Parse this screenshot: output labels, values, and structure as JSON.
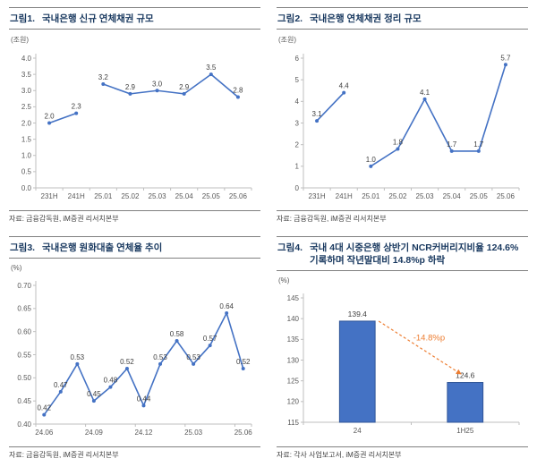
{
  "colors": {
    "line": "#4472C4",
    "bar": "#4472C4",
    "bar_border": "#2F5597",
    "label": "#404040",
    "axis": "#BFBFBF",
    "tick_text": "#595959",
    "title": "#17375E",
    "accent_orange": "#ED7D31"
  },
  "panels": [
    {
      "label": "그림1.",
      "title": "국내은행 신규 연체채권 규모",
      "unit": "(조원)",
      "source": "자료: 금융감독원, iM증권 리서치본부"
    },
    {
      "label": "그림2.",
      "title": "국내은행 연체채권 정리 규모",
      "unit": "(조원)",
      "source": "자료: 금융감독원, iM증권 리서치본부"
    },
    {
      "label": "그림3.",
      "title": "국내은행 원화대출 연체율 추이",
      "unit": "(%)",
      "source": "자료: 금융감독원, iM증권 리서치본부"
    },
    {
      "label": "그림4.",
      "title": "국내 4대 시중은행 상반기 NCR커버리지비율 124.6% 기록하며 작년말대비 14.8%p 하락",
      "unit": "(%)",
      "source": "자료: 각사 사업보고서, iM증권 리서치본부"
    }
  ],
  "chart_data": [
    {
      "type": "line",
      "title": "국내은행 신규 연체채권 규모",
      "ylabel": "조원",
      "categories": [
        "231H",
        "241H",
        "25.01",
        "25.02",
        "25.03",
        "25.04",
        "25.05",
        "25.06"
      ],
      "values": [
        2.0,
        2.3,
        3.2,
        2.9,
        3.0,
        2.9,
        3.5,
        2.8
      ],
      "segments": [
        [
          0,
          1
        ],
        [
          2,
          7
        ]
      ],
      "ylim": [
        0.0,
        4.0
      ],
      "ystep": 0.5,
      "ydec": 1,
      "vdec": 1,
      "tick_every": 1,
      "grid": false,
      "legend": "none"
    },
    {
      "type": "line",
      "title": "국내은행 연체채권 정리 규모",
      "ylabel": "조원",
      "categories": [
        "231H",
        "241H",
        "25.01",
        "25.02",
        "25.03",
        "25.04",
        "25.05",
        "25.06"
      ],
      "values": [
        3.1,
        4.4,
        1.0,
        1.8,
        4.1,
        1.7,
        1.7,
        5.7
      ],
      "segments": [
        [
          0,
          1
        ],
        [
          2,
          7
        ]
      ],
      "ylim": [
        0,
        6
      ],
      "ystep": 1,
      "ydec": 0,
      "vdec": 1,
      "tick_every": 1,
      "grid": false,
      "legend": "none"
    },
    {
      "type": "line",
      "title": "국내은행 원화대출 연체율 추이",
      "ylabel": "%",
      "categories": [
        "24.06",
        "24.07",
        "24.08",
        "24.09",
        "24.10",
        "24.11",
        "24.12",
        "25.01",
        "25.02",
        "25.03",
        "25.04",
        "25.05",
        "25.06"
      ],
      "values": [
        0.42,
        0.47,
        0.53,
        0.45,
        0.48,
        0.52,
        0.44,
        0.53,
        0.58,
        0.53,
        0.57,
        0.64,
        0.52
      ],
      "segments": [
        [
          0,
          12
        ]
      ],
      "xticks": [
        {
          "i": 0,
          "t": "24.06"
        },
        {
          "i": 3,
          "t": "24.09"
        },
        {
          "i": 6,
          "t": "24.12"
        },
        {
          "i": 9,
          "t": "25.03"
        },
        {
          "i": 12,
          "t": "25.06"
        }
      ],
      "ylim": [
        0.4,
        0.7
      ],
      "ystep": 0.05,
      "ydec": 2,
      "vdec": 2,
      "tick_every": 3,
      "grid": false,
      "legend": "none"
    },
    {
      "type": "bar",
      "title": "국내 4대 시중은행 NCR커버리지비율",
      "ylabel": "%",
      "categories": [
        "24",
        "1H25"
      ],
      "values": [
        139.4,
        124.6
      ],
      "ylim": [
        115,
        145
      ],
      "ystep": 5,
      "ydec": 0,
      "vdec": 1,
      "tick_every": 1,
      "grid": false,
      "legend": "none",
      "annotation": {
        "text": "-14.8%p"
      }
    }
  ]
}
